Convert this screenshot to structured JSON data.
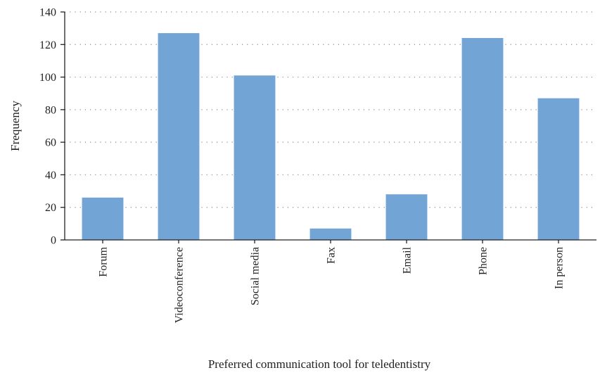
{
  "chart_data": {
    "type": "bar",
    "title": "",
    "xlabel": "Preferred communication tool for teledentistry",
    "ylabel": "Frequency",
    "categories": [
      "Forum",
      "Videoconference",
      "Social media",
      "Fax",
      "Email",
      "Phone",
      "In person"
    ],
    "values": [
      26,
      127,
      101,
      7,
      28,
      124,
      87
    ],
    "ylim": [
      0,
      140
    ],
    "yticks": [
      0,
      20,
      40,
      60,
      80,
      100,
      120,
      140
    ],
    "grid": true,
    "legend": "none",
    "bar_color": "#72a5d6"
  }
}
